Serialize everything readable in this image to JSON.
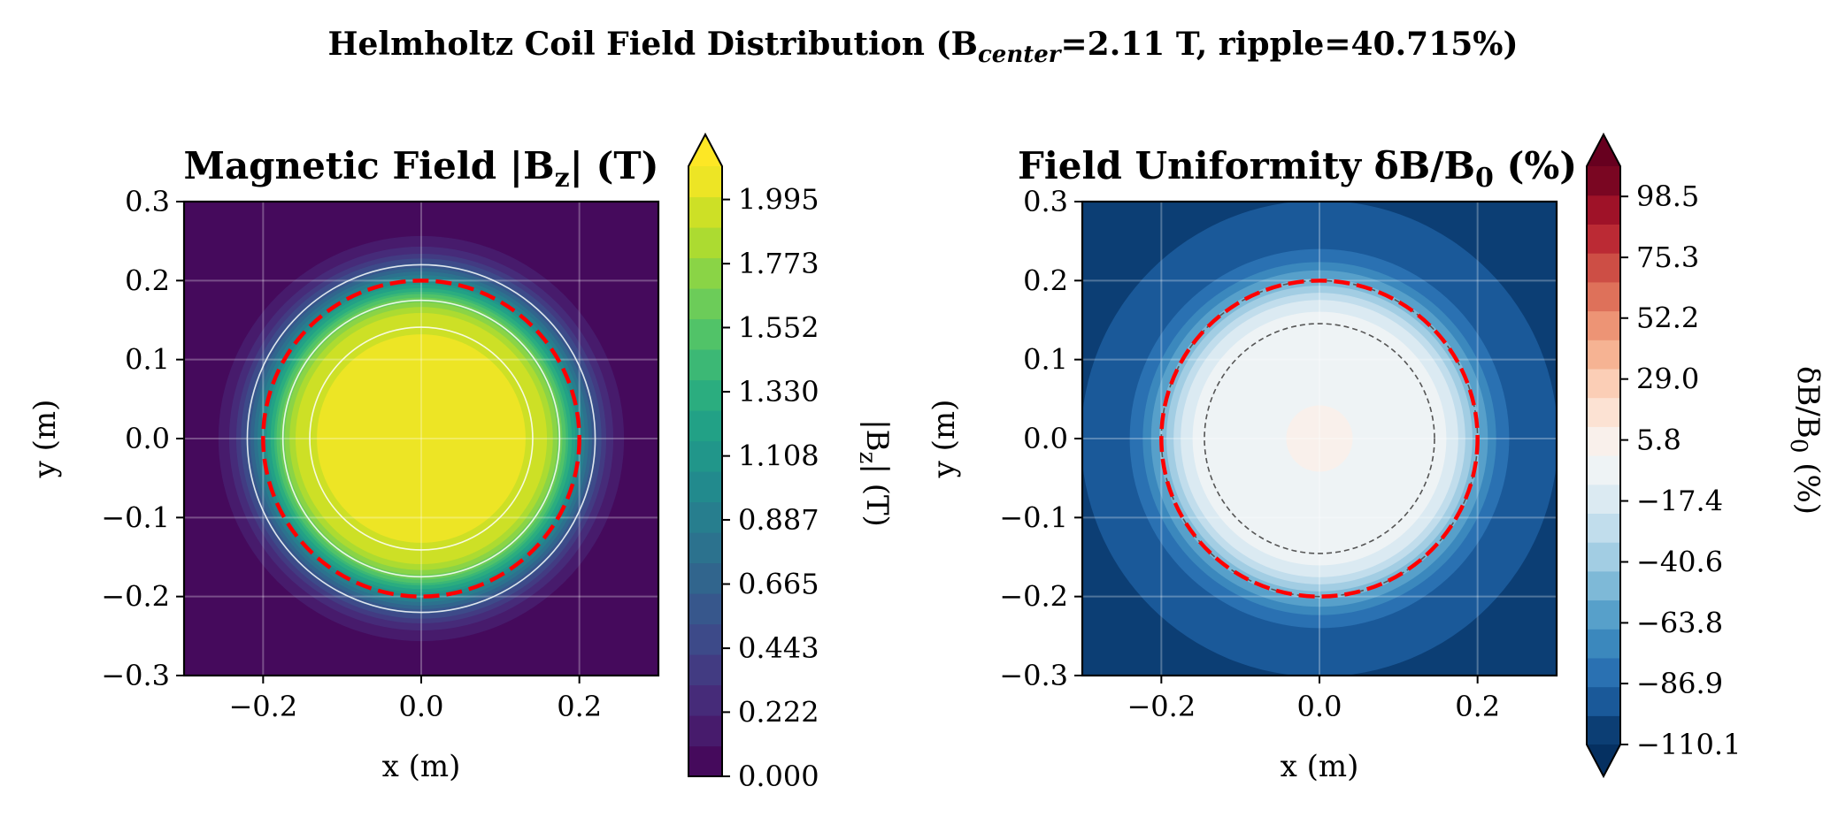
{
  "figure": {
    "title_main": "Helmholtz Coil Field Distribution (B",
    "title_sub": "center",
    "title_rest": "=2.11 T, ripple=40.715%)"
  },
  "chart_data": [
    {
      "type": "heatmap",
      "panel": "left",
      "title": "Magnetic Field |Bz| (T)",
      "title_parts": {
        "pre": "Magnetic Field |B",
        "sub": "z",
        "post": "| (T)"
      },
      "xlabel": "x (m)",
      "ylabel": "y (m)",
      "xlim": [
        -0.3,
        0.3
      ],
      "ylim": [
        -0.3,
        0.3
      ],
      "xticks": [
        "−0.2",
        "0.0",
        "0.2"
      ],
      "xtick_values": [
        -0.2,
        0.0,
        0.2
      ],
      "yticks": [
        "−0.3",
        "−0.2",
        "−0.1",
        "0.0",
        "0.1",
        "0.2",
        "0.3"
      ],
      "ytick_values": [
        -0.3,
        -0.2,
        -0.1,
        0.0,
        0.1,
        0.2,
        0.3
      ],
      "grid": true,
      "colormap": "viridis",
      "colorbar": {
        "label_parts": {
          "pre": "|B",
          "sub": "z",
          "post": "| (T)"
        },
        "min": 0.0,
        "max": 2.11,
        "extend": "max",
        "ticks": [
          "0.000",
          "0.222",
          "0.443",
          "0.665",
          "0.887",
          "1.108",
          "1.330",
          "1.552",
          "1.773",
          "1.995"
        ],
        "tick_values": [
          0.0,
          0.222,
          0.443,
          0.665,
          0.887,
          1.108,
          1.33,
          1.552,
          1.773,
          1.995
        ]
      },
      "contour_lines_color": "#ffffff",
      "coil_radius": 0.2,
      "coil_color": "#ff0000",
      "coil_style": "dashed"
    },
    {
      "type": "heatmap",
      "panel": "right",
      "title": "Field Uniformity δB/B0 (%)",
      "title_parts": {
        "pre": "Field Uniformity δB/B",
        "sub": "0",
        "post": " (%)"
      },
      "xlabel": "x (m)",
      "ylabel": "y (m)",
      "xlim": [
        -0.3,
        0.3
      ],
      "ylim": [
        -0.3,
        0.3
      ],
      "xticks": [
        "−0.2",
        "0.0",
        "0.2"
      ],
      "xtick_values": [
        -0.2,
        0.0,
        0.2
      ],
      "yticks": [
        "−0.3",
        "−0.2",
        "−0.1",
        "0.0",
        "0.1",
        "0.2",
        "0.3"
      ],
      "ytick_values": [
        -0.3,
        -0.2,
        -0.1,
        0.0,
        0.1,
        0.2,
        0.3
      ],
      "grid": true,
      "colormap": "RdBu_r",
      "colorbar": {
        "label_parts": {
          "pre": "δB/B",
          "sub": "0",
          "post": " (%)"
        },
        "min": -110.1,
        "max": 110.0,
        "extend": "both",
        "ticks": [
          "−110.1",
          "−86.9",
          "−63.8",
          "−40.6",
          "−17.4",
          "5.8",
          "29.0",
          "52.2",
          "75.3",
          "98.5"
        ],
        "tick_values": [
          -110.1,
          -86.9,
          -63.8,
          -40.6,
          -17.4,
          5.8,
          29.0,
          52.2,
          75.3,
          98.5
        ]
      },
      "contour_lines_color": "#555555",
      "coil_radius": 0.2,
      "coil_color": "#ff0000",
      "coil_style": "dashed"
    }
  ]
}
